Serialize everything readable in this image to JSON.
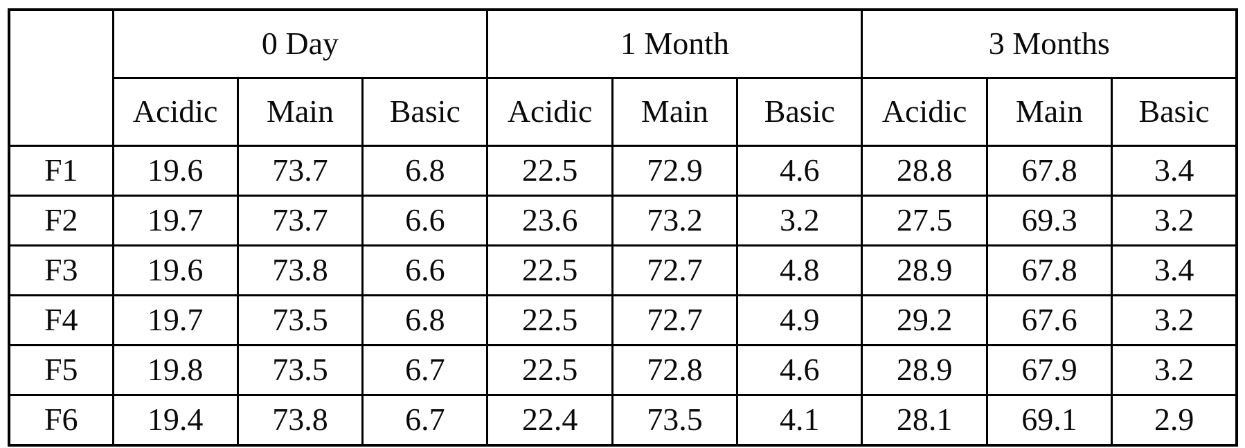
{
  "table": {
    "corner_label": "",
    "column_groups": [
      {
        "label": "0 Day",
        "columns": [
          "Acidic",
          "Main",
          "Basic"
        ]
      },
      {
        "label": "1 Month",
        "columns": [
          "Acidic",
          "Main",
          "Basic"
        ]
      },
      {
        "label": "3 Months",
        "columns": [
          "Acidic",
          "Main",
          "Basic"
        ]
      }
    ],
    "rows": [
      {
        "label": "F1",
        "values": [
          "19.6",
          "73.7",
          "6.8",
          "22.5",
          "72.9",
          "4.6",
          "28.8",
          "67.8",
          "3.4"
        ]
      },
      {
        "label": "F2",
        "values": [
          "19.7",
          "73.7",
          "6.6",
          "23.6",
          "73.2",
          "3.2",
          "27.5",
          "69.3",
          "3.2"
        ]
      },
      {
        "label": "F3",
        "values": [
          "19.6",
          "73.8",
          "6.6",
          "22.5",
          "72.7",
          "4.8",
          "28.9",
          "67.8",
          "3.4"
        ]
      },
      {
        "label": "F4",
        "values": [
          "19.7",
          "73.5",
          "6.8",
          "22.5",
          "72.7",
          "4.9",
          "29.2",
          "67.6",
          "3.2"
        ]
      },
      {
        "label": "F5",
        "values": [
          "19.8",
          "73.5",
          "6.7",
          "22.5",
          "72.8",
          "4.6",
          "28.9",
          "67.9",
          "3.2"
        ]
      },
      {
        "label": "F6",
        "values": [
          "19.4",
          "73.8",
          "6.7",
          "22.4",
          "73.5",
          "4.1",
          "28.1",
          "69.1",
          "2.9"
        ]
      }
    ],
    "colors": {
      "border": "#000000",
      "background": "#ffffff",
      "text": "#0a0a0a"
    }
  }
}
